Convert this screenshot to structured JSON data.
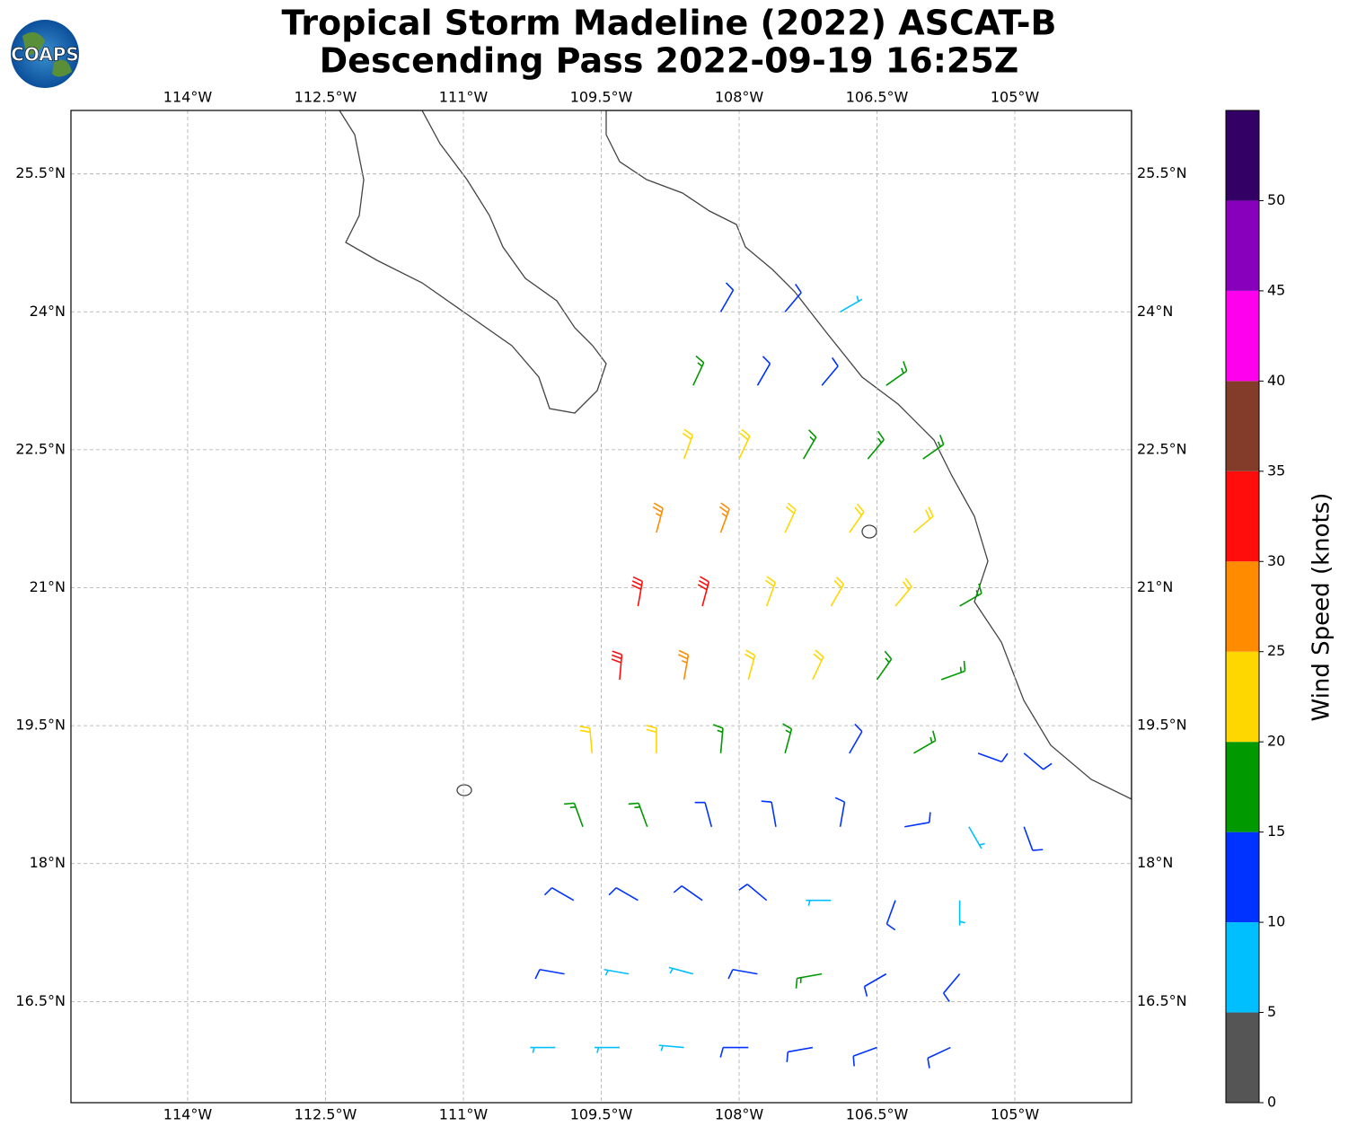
{
  "chart_data": {
    "type": "barbs",
    "title": "Tropical Storm Madeline (2022) ASCAT-B",
    "subtitle": "Descending Pass 2022-09-19 16:25Z",
    "logo_text": "COAPS",
    "xlim": [
      -115.27,
      -103.73
    ],
    "ylim": [
      15.4,
      26.19
    ],
    "xticks": [
      {
        "value": -114,
        "label": "114°W"
      },
      {
        "value": -112.5,
        "label": "112.5°W"
      },
      {
        "value": -111,
        "label": "111°W"
      },
      {
        "value": -109.5,
        "label": "109.5°W"
      },
      {
        "value": -108,
        "label": "108°W"
      },
      {
        "value": -106.5,
        "label": "106.5°W"
      },
      {
        "value": -105,
        "label": "105°W"
      }
    ],
    "yticks": [
      {
        "value": 16.5,
        "label": "16.5°N"
      },
      {
        "value": 18,
        "label": "18°N"
      },
      {
        "value": 19.5,
        "label": "19.5°N"
      },
      {
        "value": 21,
        "label": "21°N"
      },
      {
        "value": 22.5,
        "label": "22.5°N"
      },
      {
        "value": 24,
        "label": "24°N"
      },
      {
        "value": 25.5,
        "label": "25.5°N"
      }
    ],
    "grid": true,
    "colorbar": {
      "label": "Wind Speed (knots)",
      "bounds": [
        0,
        5,
        10,
        15,
        20,
        25,
        30,
        35,
        40,
        45,
        50,
        55
      ],
      "colors": [
        "#555555",
        "#00bfff",
        "#0033ff",
        "#009900",
        "#ffd700",
        "#ff8c00",
        "#ff0d0d",
        "#843c2a",
        "#ff00ee",
        "#8800bb",
        "#330066"
      ],
      "ticks": [
        0,
        5,
        10,
        15,
        20,
        25,
        30,
        35,
        40,
        45,
        50
      ]
    },
    "barbs": [
      {
        "lon": -108.2,
        "lat": 24,
        "speed": 12,
        "direction": 30
      },
      {
        "lon": -107.5,
        "lat": 24,
        "speed": 14,
        "direction": 40
      },
      {
        "lon": -106.9,
        "lat": 24,
        "speed": 8,
        "direction": 60
      },
      {
        "lon": -108.5,
        "lat": 23.2,
        "speed": 17,
        "direction": 25
      },
      {
        "lon": -107.8,
        "lat": 23.2,
        "speed": 13,
        "direction": 30
      },
      {
        "lon": -107.1,
        "lat": 23.2,
        "speed": 12,
        "direction": 40
      },
      {
        "lon": -106.4,
        "lat": 23.2,
        "speed": 16,
        "direction": 55
      },
      {
        "lon": -108.6,
        "lat": 22.4,
        "speed": 22,
        "direction": 20
      },
      {
        "lon": -108.0,
        "lat": 22.4,
        "speed": 22,
        "direction": 25
      },
      {
        "lon": -107.3,
        "lat": 22.4,
        "speed": 17,
        "direction": 30
      },
      {
        "lon": -106.6,
        "lat": 22.4,
        "speed": 17,
        "direction": 40
      },
      {
        "lon": -106.0,
        "lat": 22.4,
        "speed": 18,
        "direction": 55
      },
      {
        "lon": -108.9,
        "lat": 21.6,
        "speed": 28,
        "direction": 15
      },
      {
        "lon": -108.2,
        "lat": 21.6,
        "speed": 27,
        "direction": 20
      },
      {
        "lon": -107.5,
        "lat": 21.6,
        "speed": 23,
        "direction": 25
      },
      {
        "lon": -106.8,
        "lat": 21.6,
        "speed": 22,
        "direction": 35
      },
      {
        "lon": -106.1,
        "lat": 21.6,
        "speed": 23,
        "direction": 50
      },
      {
        "lon": -109.1,
        "lat": 20.8,
        "speed": 32,
        "direction": 10
      },
      {
        "lon": -108.4,
        "lat": 20.8,
        "speed": 30,
        "direction": 15
      },
      {
        "lon": -107.7,
        "lat": 20.8,
        "speed": 24,
        "direction": 20
      },
      {
        "lon": -107.0,
        "lat": 20.8,
        "speed": 23,
        "direction": 30
      },
      {
        "lon": -106.3,
        "lat": 20.8,
        "speed": 22,
        "direction": 40
      },
      {
        "lon": -105.6,
        "lat": 20.8,
        "speed": 19,
        "direction": 60
      },
      {
        "lon": -109.3,
        "lat": 20.0,
        "speed": 33,
        "direction": 5
      },
      {
        "lon": -108.6,
        "lat": 20.0,
        "speed": 28,
        "direction": 10
      },
      {
        "lon": -107.9,
        "lat": 20.0,
        "speed": 22,
        "direction": 15
      },
      {
        "lon": -107.2,
        "lat": 20.0,
        "speed": 20,
        "direction": 25
      },
      {
        "lon": -106.5,
        "lat": 20.0,
        "speed": 18,
        "direction": 35
      },
      {
        "lon": -105.8,
        "lat": 20.0,
        "speed": 17,
        "direction": 70
      },
      {
        "lon": -109.6,
        "lat": 19.2,
        "speed": 23,
        "direction": 355
      },
      {
        "lon": -108.9,
        "lat": 19.2,
        "speed": 22,
        "direction": 0
      },
      {
        "lon": -108.2,
        "lat": 19.2,
        "speed": 19,
        "direction": 5
      },
      {
        "lon": -107.5,
        "lat": 19.2,
        "speed": 17,
        "direction": 15
      },
      {
        "lon": -106.8,
        "lat": 19.2,
        "speed": 14,
        "direction": 30
      },
      {
        "lon": -106.1,
        "lat": 19.2,
        "speed": 16,
        "direction": 60
      },
      {
        "lon": -105.4,
        "lat": 19.2,
        "speed": 13,
        "direction": 110
      },
      {
        "lon": -104.9,
        "lat": 19.2,
        "speed": 12,
        "direction": 130
      },
      {
        "lon": -109.7,
        "lat": 18.4,
        "speed": 17,
        "direction": 340
      },
      {
        "lon": -109.0,
        "lat": 18.4,
        "speed": 16,
        "direction": 340
      },
      {
        "lon": -108.3,
        "lat": 18.4,
        "speed": 14,
        "direction": 345
      },
      {
        "lon": -107.6,
        "lat": 18.4,
        "speed": 13,
        "direction": 350
      },
      {
        "lon": -106.9,
        "lat": 18.4,
        "speed": 12,
        "direction": 10
      },
      {
        "lon": -106.2,
        "lat": 18.4,
        "speed": 11,
        "direction": 80
      },
      {
        "lon": -105.5,
        "lat": 18.4,
        "speed": 9,
        "direction": 150
      },
      {
        "lon": -104.9,
        "lat": 18.4,
        "speed": 13,
        "direction": 160
      },
      {
        "lon": -109.8,
        "lat": 17.6,
        "speed": 13,
        "direction": 300
      },
      {
        "lon": -109.1,
        "lat": 17.6,
        "speed": 12,
        "direction": 300
      },
      {
        "lon": -108.4,
        "lat": 17.6,
        "speed": 12,
        "direction": 305
      },
      {
        "lon": -107.7,
        "lat": 17.6,
        "speed": 11,
        "direction": 310
      },
      {
        "lon": -107.0,
        "lat": 17.6,
        "speed": 8,
        "direction": 270
      },
      {
        "lon": -106.3,
        "lat": 17.6,
        "speed": 12,
        "direction": 200
      },
      {
        "lon": -105.6,
        "lat": 17.6,
        "speed": 8,
        "direction": 180
      },
      {
        "lon": -109.9,
        "lat": 16.8,
        "speed": 11,
        "direction": 280
      },
      {
        "lon": -109.2,
        "lat": 16.8,
        "speed": 9,
        "direction": 280
      },
      {
        "lon": -108.5,
        "lat": 16.8,
        "speed": 9,
        "direction": 285
      },
      {
        "lon": -107.8,
        "lat": 16.8,
        "speed": 12,
        "direction": 280
      },
      {
        "lon": -107.1,
        "lat": 16.8,
        "speed": 17,
        "direction": 260
      },
      {
        "lon": -106.4,
        "lat": 16.8,
        "speed": 14,
        "direction": 240
      },
      {
        "lon": -105.6,
        "lat": 16.8,
        "speed": 12,
        "direction": 220
      },
      {
        "lon": -110.0,
        "lat": 16.0,
        "speed": 8,
        "direction": 270
      },
      {
        "lon": -109.3,
        "lat": 16.0,
        "speed": 9,
        "direction": 270
      },
      {
        "lon": -108.6,
        "lat": 16.0,
        "speed": 8,
        "direction": 275
      },
      {
        "lon": -107.9,
        "lat": 16.0,
        "speed": 13,
        "direction": 270
      },
      {
        "lon": -107.2,
        "lat": 16.0,
        "speed": 13,
        "direction": 260
      },
      {
        "lon": -106.5,
        "lat": 16.0,
        "speed": 14,
        "direction": 250
      },
      {
        "lon": -105.7,
        "lat": 16.0,
        "speed": 13,
        "direction": 245
      }
    ]
  }
}
